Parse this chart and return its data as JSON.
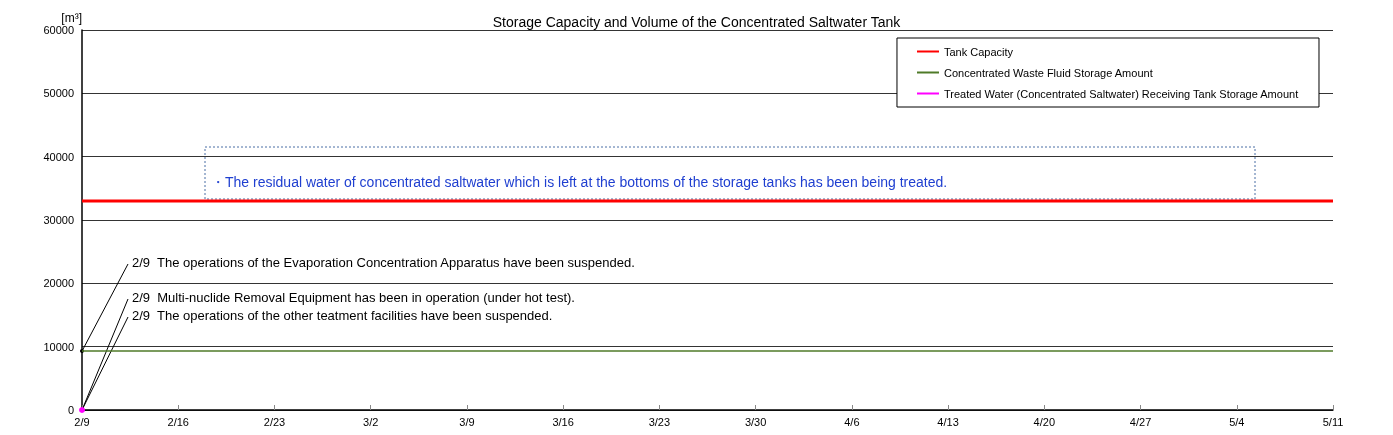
{
  "chart_data": {
    "type": "line",
    "title": "Storage Capacity and Volume of the Concentrated Saltwater Tank",
    "ylabel": "[m³]",
    "series": [
      {
        "name": "Tank Capacity",
        "color": "#ff0000",
        "x": [
          "--02-09",
          "--05-11"
        ],
        "values": [
          33000,
          33000
        ]
      },
      {
        "name": "Concentrated Waste Fluid Storage Amount",
        "color": "#4f7a28",
        "x": [
          "--02-09",
          "--05-11"
        ],
        "values": [
          9300,
          9300
        ]
      },
      {
        "name": "Treated Water (Concentrated Saltwater) Receiving Tank Storage Amount",
        "color": "#ff00ff",
        "x": [
          "--02-09"
        ],
        "values": [
          0
        ]
      }
    ],
    "xlim": [
      "--02-09",
      "--05-11"
    ],
    "xticks": [
      {
        "value": "--02-09",
        "label": "2/9"
      },
      {
        "value": "--02-16",
        "label": "2/16"
      },
      {
        "value": "--02-23",
        "label": "2/23"
      },
      {
        "value": "--03-02",
        "label": "3/2"
      },
      {
        "value": "--03-09",
        "label": "3/9"
      },
      {
        "value": "--03-16",
        "label": "3/16"
      },
      {
        "value": "--03-23",
        "label": "3/23"
      },
      {
        "value": "--03-30",
        "label": "3/30"
      },
      {
        "value": "--04-06",
        "label": "4/6"
      },
      {
        "value": "--04-13",
        "label": "4/13"
      },
      {
        "value": "--04-20",
        "label": "4/20"
      },
      {
        "value": "--04-27",
        "label": "4/27"
      },
      {
        "value": "--05-04",
        "label": "5/4"
      },
      {
        "value": "--05-11",
        "label": "5/11"
      }
    ],
    "ylim": [
      0,
      60000
    ],
    "yticks": [
      0,
      10000,
      20000,
      30000,
      40000,
      50000,
      60000
    ],
    "grid": "y",
    "legend": "top right",
    "marker": "none",
    "line_style": "solid",
    "annotations": [
      {
        "text": "2/9  The operations of the Evaporation Concentration Apparatus have been suspended.",
        "x": "--02-09",
        "y": 9300
      },
      {
        "text": "2/9  Multi-nuclide Removal Equipment has been in operation (under hot test).",
        "x": "--02-09",
        "y": 0
      },
      {
        "text": "2/9  The operations of the other teatment facilities have been suspended.",
        "x": "--02-09",
        "y": 0
      },
      "・The residual water of concentrated saltwater which is left at the bottoms of the storage tanks has been being treated."
    ]
  }
}
